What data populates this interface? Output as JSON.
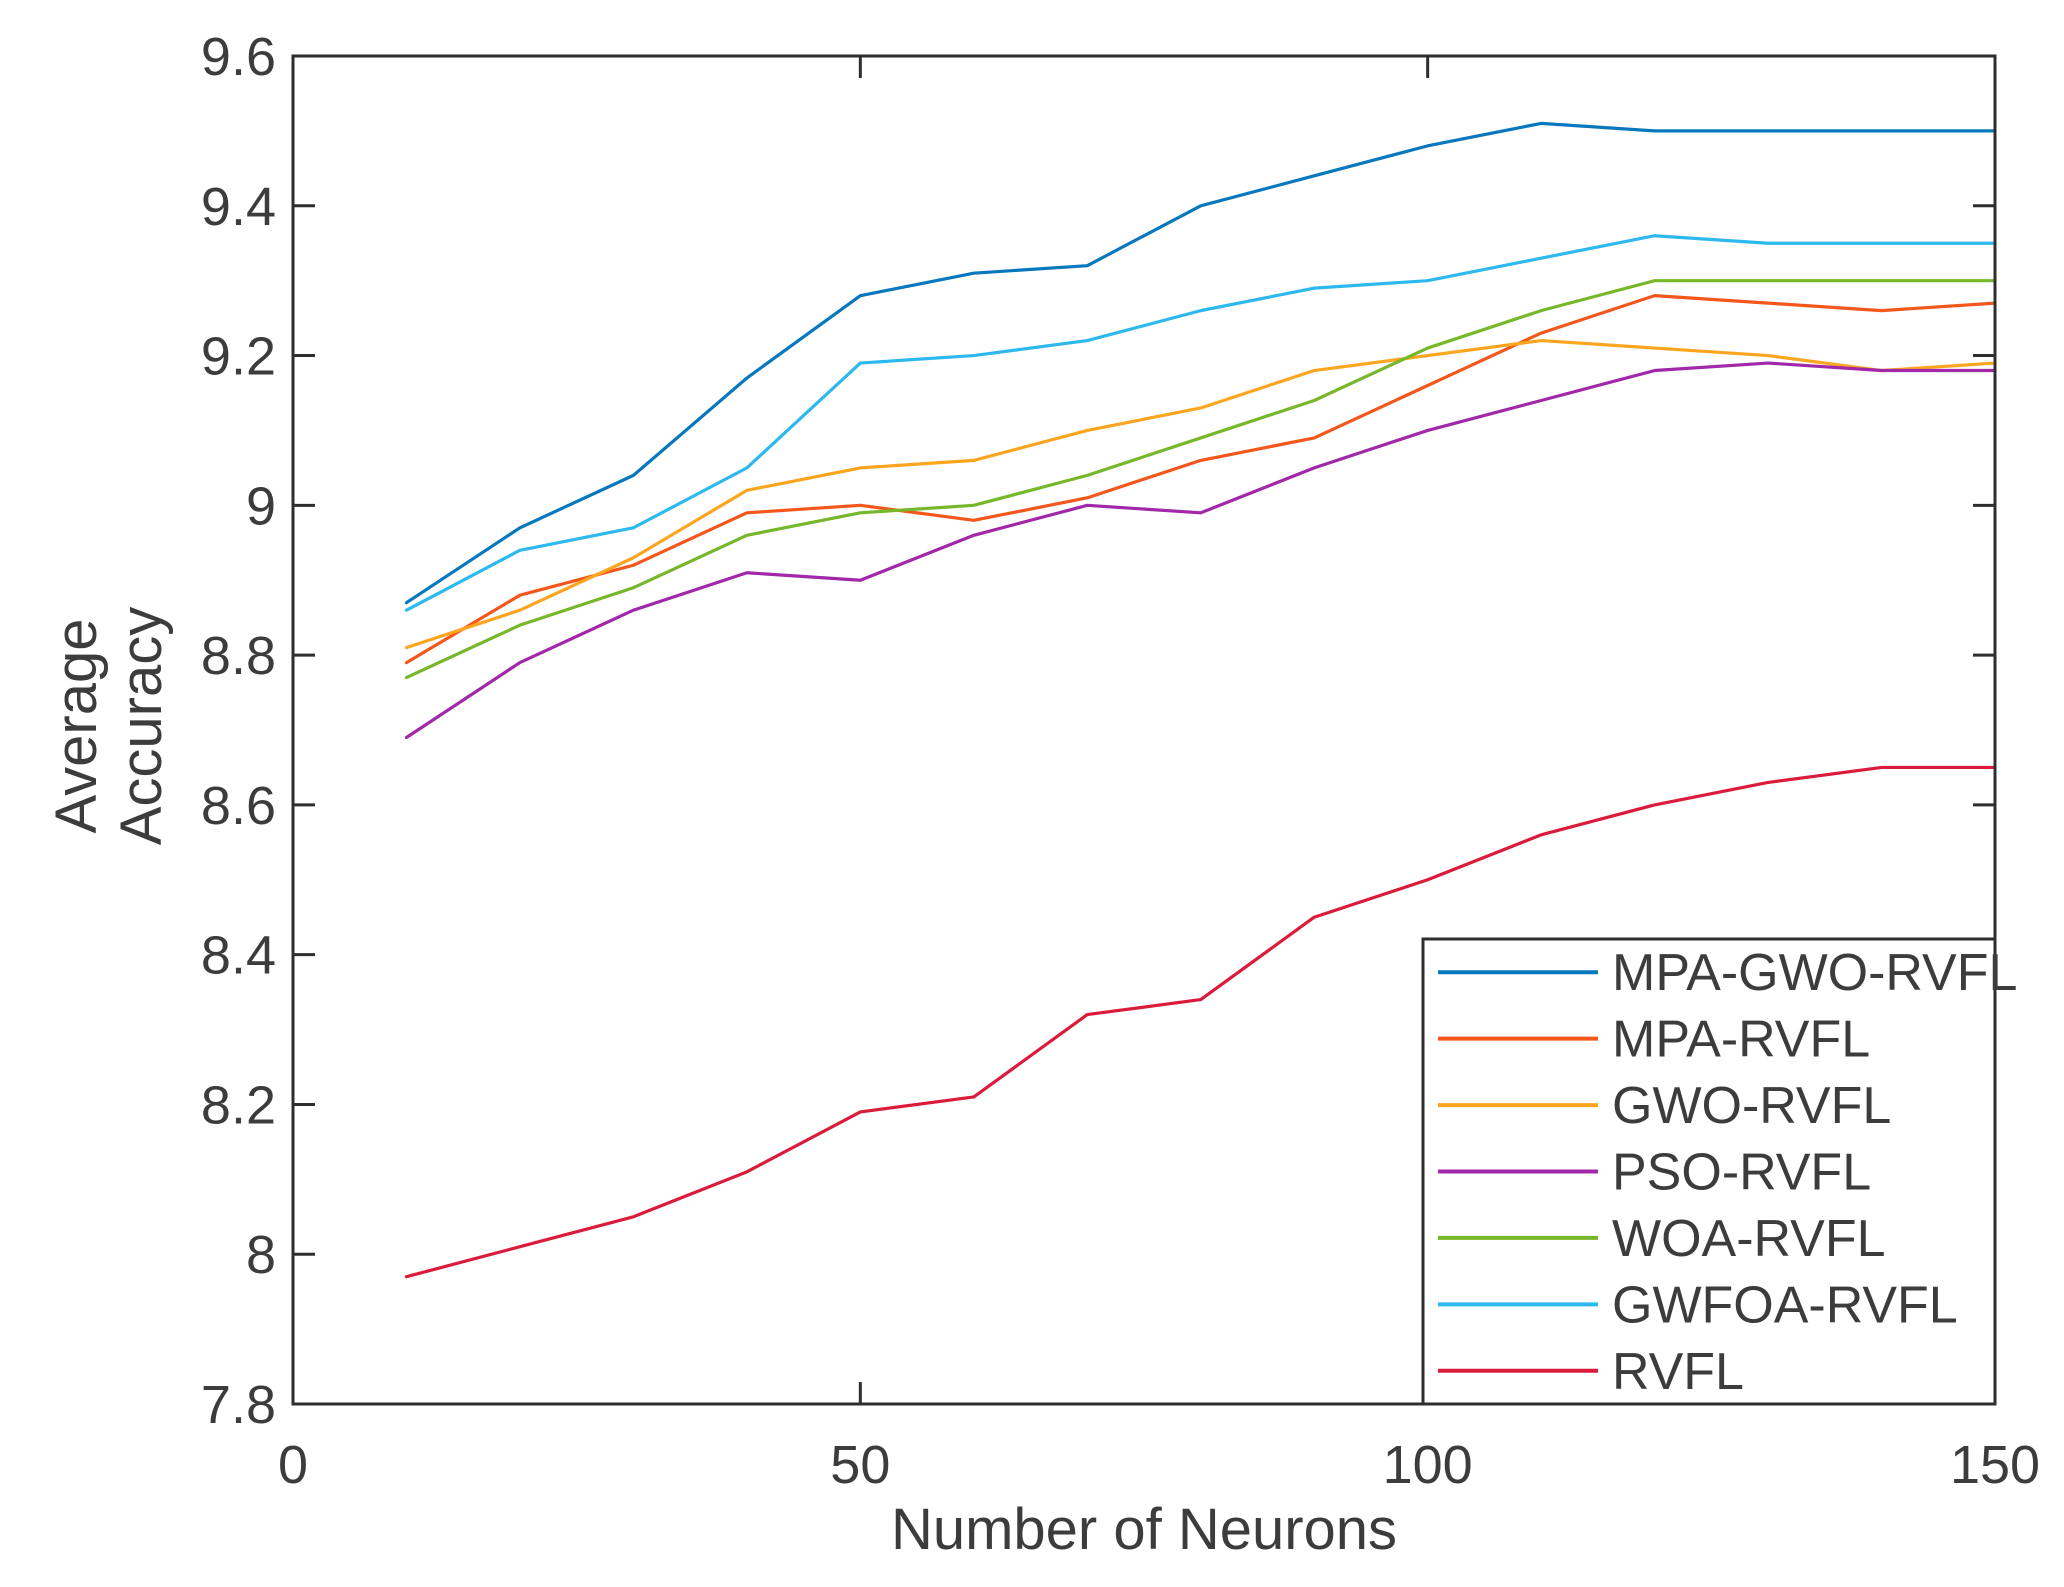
{
  "chart_data": {
    "type": "line",
    "title": "",
    "xlabel": "Number of Neurons",
    "ylabel": "Average Accuracy",
    "ylabel_lines": [
      "Average",
      "Accuracy"
    ],
    "xlim": [
      0,
      150
    ],
    "ylim": [
      7.8,
      9.6
    ],
    "xticks": [
      0,
      50,
      100,
      150
    ],
    "xtick_labels": [
      "0",
      "50",
      "100",
      "150"
    ],
    "yticks": [
      7.8,
      8.0,
      8.2,
      8.4,
      8.6,
      8.8,
      9.0,
      9.2,
      9.4,
      9.6
    ],
    "ytick_labels": [
      "7.8",
      "8",
      "8.2",
      "8.4",
      "8.6",
      "8.8",
      "9",
      "9.2",
      "9.4",
      "9.6"
    ],
    "grid": false,
    "box": true,
    "tick_direction": "in",
    "legend_position": "bottom-right",
    "x": [
      10,
      20,
      30,
      40,
      50,
      60,
      70,
      80,
      90,
      100,
      110,
      120,
      130,
      140,
      150
    ],
    "series": [
      {
        "name": "MPA-GWO-RVFL",
        "color": "#0878be",
        "values": [
          8.87,
          8.97,
          9.04,
          9.17,
          9.28,
          9.31,
          9.32,
          9.4,
          9.44,
          9.48,
          9.51,
          9.5,
          9.5,
          9.5,
          9.5
        ]
      },
      {
        "name": "MPA-RVFL",
        "color": "#f4571c",
        "values": [
          8.79,
          8.88,
          8.92,
          8.99,
          9.0,
          8.98,
          9.01,
          9.06,
          9.09,
          9.16,
          9.23,
          9.28,
          9.27,
          9.26,
          9.27
        ]
      },
      {
        "name": "GWO-RVFL",
        "color": "#fca51f",
        "values": [
          8.81,
          8.86,
          8.93,
          9.02,
          9.05,
          9.06,
          9.1,
          9.13,
          9.18,
          9.2,
          9.22,
          9.21,
          9.2,
          9.18,
          9.19
        ]
      },
      {
        "name": "PSO-RVFL",
        "color": "#a128a8",
        "values": [
          8.69,
          8.79,
          8.86,
          8.91,
          8.9,
          8.96,
          9.0,
          8.99,
          9.05,
          9.1,
          9.14,
          9.18,
          9.19,
          9.18,
          9.18
        ]
      },
      {
        "name": "WOA-RVFL",
        "color": "#77b72a",
        "values": [
          8.77,
          8.84,
          8.89,
          8.96,
          8.99,
          9.0,
          9.04,
          9.09,
          9.14,
          9.21,
          9.26,
          9.3,
          9.3,
          9.3,
          9.3
        ]
      },
      {
        "name": "GWFOA-RVFL",
        "color": "#2db9ee",
        "values": [
          8.86,
          8.94,
          8.97,
          9.05,
          9.19,
          9.2,
          9.22,
          9.26,
          9.29,
          9.3,
          9.33,
          9.36,
          9.35,
          9.35,
          9.35
        ]
      },
      {
        "name": "RVFL",
        "color": "#da1b3c",
        "values": [
          7.97,
          8.01,
          8.05,
          8.11,
          8.19,
          8.21,
          8.32,
          8.34,
          8.45,
          8.5,
          8.56,
          8.6,
          8.63,
          8.65,
          8.65
        ]
      }
    ]
  },
  "colors": {
    "background": "#ffffff",
    "axis": "#2e2e2e",
    "tick_text": "#3c3c3c",
    "label_text": "#3c3c3c",
    "legend_border": "#2e2e2e",
    "legend_background": "#ffffff"
  }
}
